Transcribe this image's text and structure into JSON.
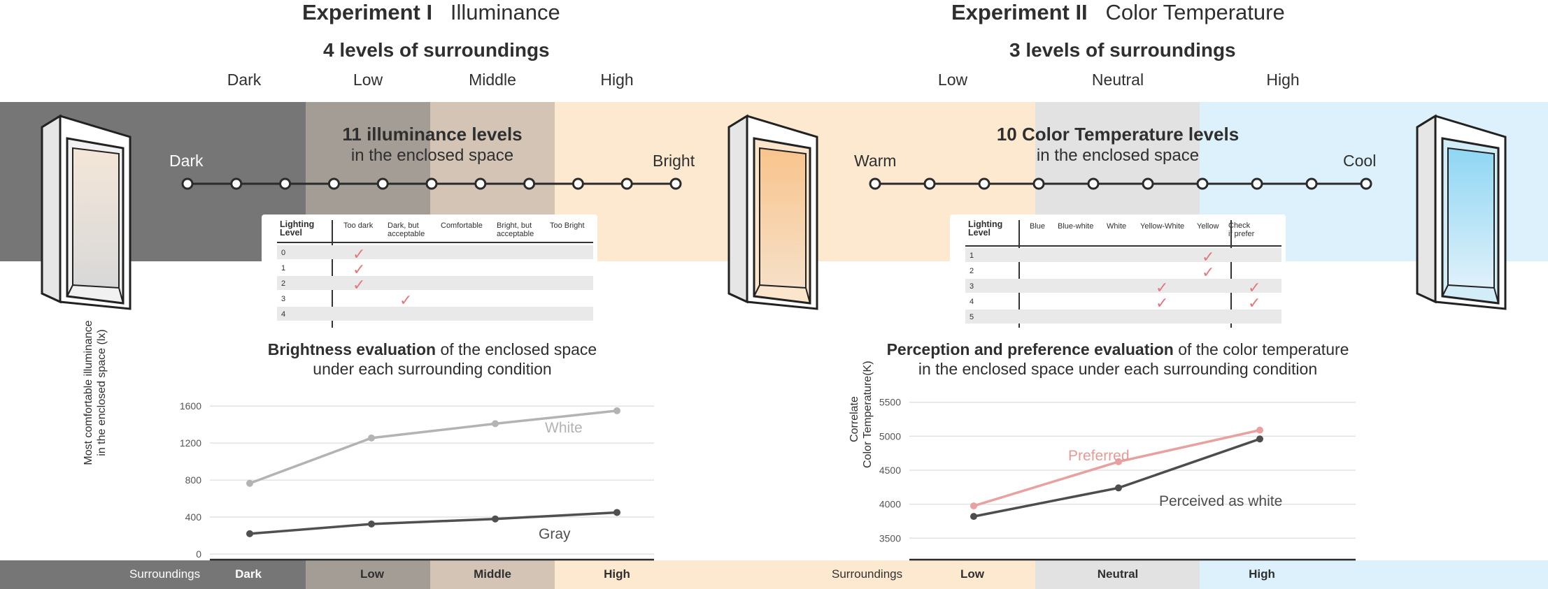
{
  "exp1": {
    "title_bold": "Experiment I",
    "title_rest": "Illuminance",
    "surroundings_heading": "4 levels of surroundings",
    "levels": [
      "Dark",
      "Low",
      "Middle",
      "High"
    ],
    "scale_heading_bold": "11 illuminance levels",
    "scale_heading_rest": "in the enclosed space",
    "scale_left": "Dark",
    "scale_right": "Bright",
    "scale_points": 11,
    "table": {
      "header_first": "Lighting\nLevel",
      "columns": [
        "Too dark",
        "Dark, but\nacceptable",
        "Comfortable",
        "Bright, but\nacceptable",
        "Too Bright"
      ],
      "rows": [
        "0",
        "1",
        "2",
        "3",
        "4"
      ],
      "checks": [
        [
          0,
          0
        ],
        [
          1,
          0
        ],
        [
          2,
          0
        ],
        [
          3,
          1
        ]
      ]
    },
    "caption_bold": "Brightness evaluation",
    "caption_rest": " of the enclosed space",
    "caption_line2": "under each surrounding condition",
    "bottom_surroundings": "Surroundings",
    "bottom_levels": [
      "Dark",
      "Low",
      "Middle",
      "High"
    ]
  },
  "exp2": {
    "title_bold": "Experiment II",
    "title_rest": "Color Temperature",
    "surroundings_heading": "3 levels of surroundings",
    "levels": [
      "Low",
      "Neutral",
      "High"
    ],
    "scale_heading_bold": "10 Color Temperature levels",
    "scale_heading_rest": "in the enclosed space",
    "scale_left": "Warm",
    "scale_right": "Cool",
    "scale_points": 10,
    "table": {
      "header_first": "Lighting\nLevel",
      "columns": [
        "Blue",
        "Blue-white",
        "White",
        "Yellow-White",
        "Yellow",
        "Check\nif prefer"
      ],
      "rows": [
        "1",
        "2",
        "3",
        "4",
        "5"
      ],
      "checks": [
        [
          0,
          4
        ],
        [
          1,
          4
        ],
        [
          2,
          3
        ],
        [
          3,
          3
        ],
        [
          2,
          5
        ],
        [
          3,
          5
        ]
      ]
    },
    "caption_bold": "Perception and preference evaluation",
    "caption_rest": " of the color temperature",
    "caption_line2": "in the enclosed space under each surrounding condition",
    "bottom_surroundings": "Surroundings",
    "bottom_levels": [
      "Low",
      "Neutral",
      "High"
    ]
  },
  "colors": {
    "dark": "#767676",
    "low": "#a49d95",
    "middle": "#d3c4b6",
    "high": "#fde8d0",
    "neutral": "#e2e2e2",
    "cool": "#dcf1fb",
    "check": "#e07a80",
    "white_series": "#b3b3b3",
    "gray_series": "#505050",
    "preferred_series": "#e8a0a0",
    "perceived_series": "#4d4d4d"
  },
  "chart_data": [
    {
      "type": "line",
      "ylabel": "Most comfortable illuminance\nin the enclosed space (lx)",
      "categories": [
        "Dark",
        "Low",
        "Middle",
        "High"
      ],
      "yticks": [
        0,
        400,
        800,
        1200,
        1600
      ],
      "ylim": [
        0,
        1700
      ],
      "series": [
        {
          "name": "White",
          "values": [
            765,
            1255,
            1410,
            1550
          ]
        },
        {
          "name": "Gray",
          "values": [
            220,
            325,
            380,
            450
          ]
        }
      ]
    },
    {
      "type": "line",
      "ylabel": "Correlate\nColor Temperature(K)",
      "categories": [
        "Low",
        "Neutral",
        "High"
      ],
      "yticks": [
        3500,
        4000,
        4500,
        5000,
        5500
      ],
      "ylim": [
        3400,
        5600
      ],
      "series": [
        {
          "name": "Preferred",
          "values": [
            3975,
            4625,
            5090
          ]
        },
        {
          "name": "Perceived as white",
          "values": [
            3820,
            4240,
            4960
          ]
        }
      ]
    }
  ]
}
